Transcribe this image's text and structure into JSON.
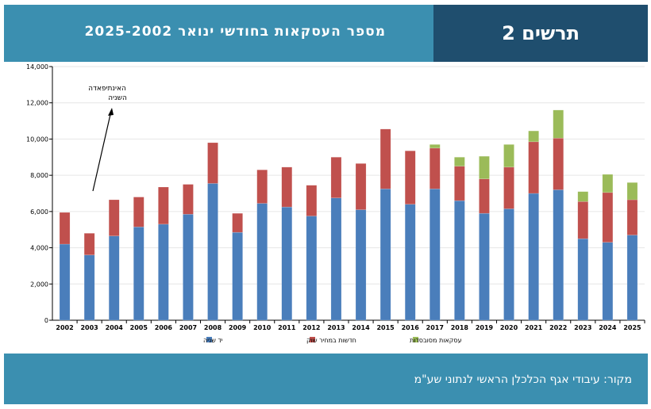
{
  "header": {
    "title": "מספר העסקאות בחודשי ינואר 2025-2002",
    "figure_label": "תרשים 2"
  },
  "footer": {
    "source": "מקור: עיבודי אגף הכלכלן הראשי לנתוני שע\"מ"
  },
  "colors": {
    "header_light": "#3b8fb0",
    "header_dark": "#1f4e6e",
    "series_secondhand": "#4a7ebb",
    "series_new_market": "#c0504d",
    "series_subsidized": "#9bbb59"
  },
  "chart_data": {
    "type": "bar",
    "stacked": true,
    "categories": [
      "2002",
      "2003",
      "2004",
      "2005",
      "2006",
      "2007",
      "2008",
      "2009",
      "2010",
      "2011",
      "2012",
      "2013",
      "2014",
      "2015",
      "2016",
      "2017",
      "2018",
      "2019",
      "2020",
      "2021",
      "2022",
      "2023",
      "2024",
      "2025"
    ],
    "series": [
      {
        "name": "יד שניה",
        "color": "#4a7ebb",
        "values": [
          4200,
          3600,
          4650,
          5150,
          5300,
          5850,
          7550,
          4850,
          6450,
          6250,
          5750,
          6750,
          6100,
          7250,
          6400,
          7250,
          6600,
          5900,
          6150,
          7000,
          7200,
          4500,
          4300,
          4700
        ]
      },
      {
        "name": "חדשות במחיר שוק",
        "color": "#c0504d",
        "values": [
          1750,
          1200,
          2000,
          1650,
          2050,
          1650,
          2250,
          1050,
          1850,
          2200,
          1700,
          2250,
          2550,
          3300,
          2950,
          2250,
          1900,
          1900,
          2300,
          2850,
          2850,
          2050,
          2750,
          1950
        ]
      },
      {
        "name": "עסקאות מסובסדות",
        "color": "#9bbb59",
        "values": [
          0,
          0,
          0,
          0,
          0,
          0,
          0,
          0,
          0,
          0,
          0,
          0,
          0,
          0,
          0,
          200,
          500,
          1250,
          1250,
          600,
          1550,
          550,
          1000,
          950
        ]
      }
    ],
    "ylim": [
      0,
      14000
    ],
    "yticks": [
      0,
      2000,
      4000,
      6000,
      8000,
      10000,
      12000,
      14000
    ],
    "ytick_labels": [
      "0",
      "2,000",
      "4,000",
      "6,000",
      "8,000",
      "10,000",
      "12,000",
      "14,000"
    ],
    "legend_position": "bottom",
    "annotation": {
      "text_line1": "האינתיפאדה",
      "text_line2": "השניה",
      "points_to": "2003"
    }
  }
}
